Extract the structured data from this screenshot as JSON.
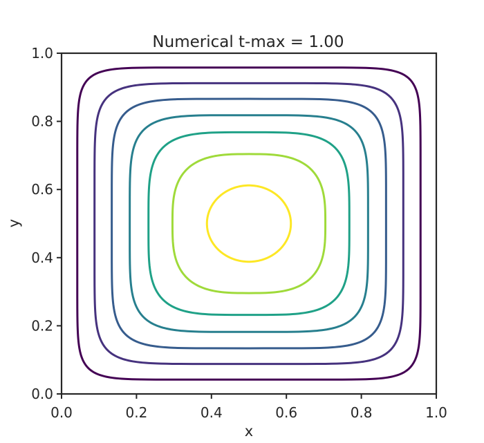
{
  "chart_data": {
    "type": "contour",
    "title": "Numerical t-max = 1.00",
    "xlabel": "x",
    "ylabel": "y",
    "xlim": [
      0.0,
      1.0
    ],
    "ylim": [
      0.0,
      1.0
    ],
    "xticks": [
      "0.0",
      "0.2",
      "0.4",
      "0.6",
      "0.8",
      "1.0"
    ],
    "yticks": [
      "0.0",
      "0.2",
      "0.4",
      "0.6",
      "0.8",
      "1.0"
    ],
    "colormap": "viridis",
    "grid": false,
    "center": [
      0.5,
      0.5
    ],
    "levels": [
      {
        "half_width": 0.458,
        "color": "#440154"
      },
      {
        "half_width": 0.412,
        "color": "#46327e"
      },
      {
        "half_width": 0.366,
        "color": "#365c8d"
      },
      {
        "half_width": 0.318,
        "color": "#277f8e"
      },
      {
        "half_width": 0.268,
        "color": "#1fa187"
      },
      {
        "half_width": 0.204,
        "color": "#4ac16d"
      },
      {
        "half_width": 0.112,
        "color": "#fde725"
      }
    ],
    "level_colors_note": "outer to inner",
    "line_colors": [
      "#440154",
      "#46327e",
      "#365c8d",
      "#277f8e",
      "#1fa187",
      "#9fda3a",
      "#fde725"
    ]
  }
}
